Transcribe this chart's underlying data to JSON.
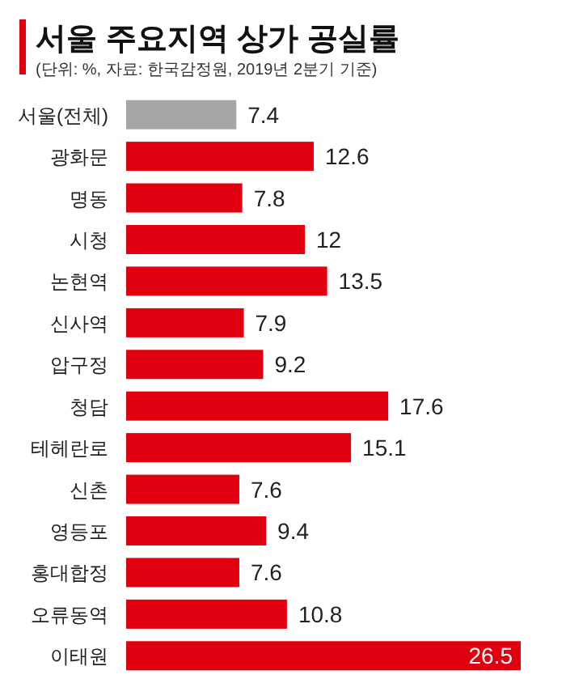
{
  "chart_data": {
    "type": "bar",
    "orientation": "horizontal",
    "title": "서울 주요지역 상가 공실률",
    "subtitle": "(단위: %, 자료: 한국감정원, 2019년 2분기 기준)",
    "categories": [
      "서울(전체)",
      "광화문",
      "명동",
      "시청",
      "논현역",
      "신사역",
      "압구정",
      "청담",
      "테헤란로",
      "신촌",
      "영등포",
      "홍대합정",
      "오류동역",
      "이태원"
    ],
    "values": [
      7.4,
      12.6,
      7.8,
      12,
      13.5,
      7.9,
      9.2,
      17.6,
      15.1,
      7.6,
      9.4,
      7.6,
      10.8,
      26.5
    ],
    "colors": [
      "#a6a6a6",
      "#e0000f",
      "#e0000f",
      "#e0000f",
      "#e0000f",
      "#e0000f",
      "#e0000f",
      "#e0000f",
      "#e0000f",
      "#e0000f",
      "#e0000f",
      "#e0000f",
      "#e0000f",
      "#e0000f"
    ],
    "data_labels": true
  }
}
